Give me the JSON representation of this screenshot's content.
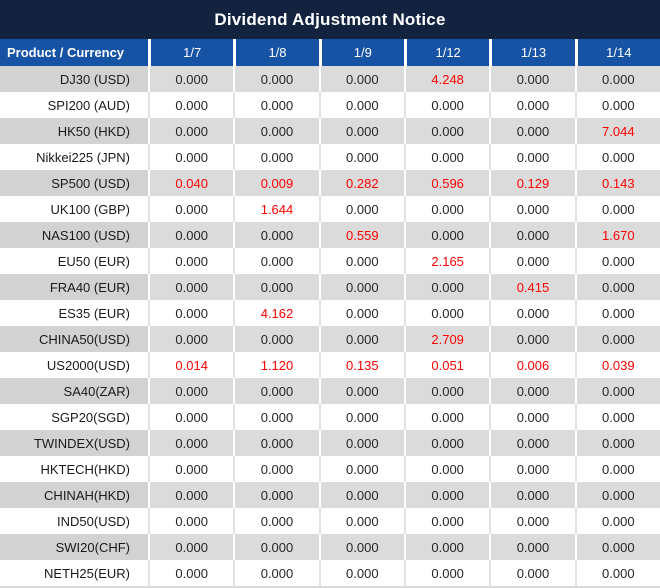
{
  "title": "Dividend Adjustment Notice",
  "colors": {
    "title_bg": "#13233f",
    "header_bg": "#1653a4",
    "gray_row_label": "#d2d2d2",
    "gray_row_value": "#dbdbdb",
    "negative_value_red": "#ff0000"
  },
  "table": {
    "product_header": "Product / Currency",
    "date_headers": [
      "1/7",
      "1/8",
      "1/9",
      "1/12",
      "1/13",
      "1/14"
    ],
    "rows": [
      {
        "product": "DJ30 (USD)",
        "values": [
          "0.000",
          "0.000",
          "0.000",
          "4.248",
          "0.000",
          "0.000"
        ],
        "red": [
          false,
          false,
          false,
          true,
          false,
          false
        ]
      },
      {
        "product": "SPI200 (AUD)",
        "values": [
          "0.000",
          "0.000",
          "0.000",
          "0.000",
          "0.000",
          "0.000"
        ],
        "red": [
          false,
          false,
          false,
          false,
          false,
          false
        ]
      },
      {
        "product": "HK50 (HKD)",
        "values": [
          "0.000",
          "0.000",
          "0.000",
          "0.000",
          "0.000",
          "7.044"
        ],
        "red": [
          false,
          false,
          false,
          false,
          false,
          true
        ]
      },
      {
        "product": "Nikkei225 (JPN)",
        "values": [
          "0.000",
          "0.000",
          "0.000",
          "0.000",
          "0.000",
          "0.000"
        ],
        "red": [
          false,
          false,
          false,
          false,
          false,
          false
        ]
      },
      {
        "product": "SP500 (USD)",
        "values": [
          "0.040",
          "0.009",
          "0.282",
          "0.596",
          "0.129",
          "0.143"
        ],
        "red": [
          true,
          true,
          true,
          true,
          true,
          true
        ]
      },
      {
        "product": "UK100 (GBP)",
        "values": [
          "0.000",
          "1.644",
          "0.000",
          "0.000",
          "0.000",
          "0.000"
        ],
        "red": [
          false,
          true,
          false,
          false,
          false,
          false
        ]
      },
      {
        "product": "NAS100 (USD)",
        "values": [
          "0.000",
          "0.000",
          "0.559",
          "0.000",
          "0.000",
          "1.670"
        ],
        "red": [
          false,
          false,
          true,
          false,
          false,
          true
        ]
      },
      {
        "product": "EU50 (EUR)",
        "values": [
          "0.000",
          "0.000",
          "0.000",
          "2.165",
          "0.000",
          "0.000"
        ],
        "red": [
          false,
          false,
          false,
          true,
          false,
          false
        ]
      },
      {
        "product": "FRA40 (EUR)",
        "values": [
          "0.000",
          "0.000",
          "0.000",
          "0.000",
          "0.415",
          "0.000"
        ],
        "red": [
          false,
          false,
          false,
          false,
          true,
          false
        ]
      },
      {
        "product": "ES35 (EUR)",
        "values": [
          "0.000",
          "4.162",
          "0.000",
          "0.000",
          "0.000",
          "0.000"
        ],
        "red": [
          false,
          true,
          false,
          false,
          false,
          false
        ]
      },
      {
        "product": "CHINA50(USD)",
        "values": [
          "0.000",
          "0.000",
          "0.000",
          "2.709",
          "0.000",
          "0.000"
        ],
        "red": [
          false,
          false,
          false,
          true,
          false,
          false
        ]
      },
      {
        "product": "US2000(USD)",
        "values": [
          "0.014",
          "1.120",
          "0.135",
          "0.051",
          "0.006",
          "0.039"
        ],
        "red": [
          true,
          true,
          true,
          true,
          true,
          true
        ]
      },
      {
        "product": "SA40(ZAR)",
        "values": [
          "0.000",
          "0.000",
          "0.000",
          "0.000",
          "0.000",
          "0.000"
        ],
        "red": [
          false,
          false,
          false,
          false,
          false,
          false
        ]
      },
      {
        "product": "SGP20(SGD)",
        "values": [
          "0.000",
          "0.000",
          "0.000",
          "0.000",
          "0.000",
          "0.000"
        ],
        "red": [
          false,
          false,
          false,
          false,
          false,
          false
        ]
      },
      {
        "product": "TWINDEX(USD)",
        "values": [
          "0.000",
          "0.000",
          "0.000",
          "0.000",
          "0.000",
          "0.000"
        ],
        "red": [
          false,
          false,
          false,
          false,
          false,
          false
        ]
      },
      {
        "product": "HKTECH(HKD)",
        "values": [
          "0.000",
          "0.000",
          "0.000",
          "0.000",
          "0.000",
          "0.000"
        ],
        "red": [
          false,
          false,
          false,
          false,
          false,
          false
        ]
      },
      {
        "product": "CHINAH(HKD)",
        "values": [
          "0.000",
          "0.000",
          "0.000",
          "0.000",
          "0.000",
          "0.000"
        ],
        "red": [
          false,
          false,
          false,
          false,
          false,
          false
        ]
      },
      {
        "product": "IND50(USD)",
        "values": [
          "0.000",
          "0.000",
          "0.000",
          "0.000",
          "0.000",
          "0.000"
        ],
        "red": [
          false,
          false,
          false,
          false,
          false,
          false
        ]
      },
      {
        "product": "SWI20(CHF)",
        "values": [
          "0.000",
          "0.000",
          "0.000",
          "0.000",
          "0.000",
          "0.000"
        ],
        "red": [
          false,
          false,
          false,
          false,
          false,
          false
        ]
      },
      {
        "product": "NETH25(EUR)",
        "values": [
          "0.000",
          "0.000",
          "0.000",
          "0.000",
          "0.000",
          "0.000"
        ],
        "red": [
          false,
          false,
          false,
          false,
          false,
          false
        ]
      }
    ]
  }
}
